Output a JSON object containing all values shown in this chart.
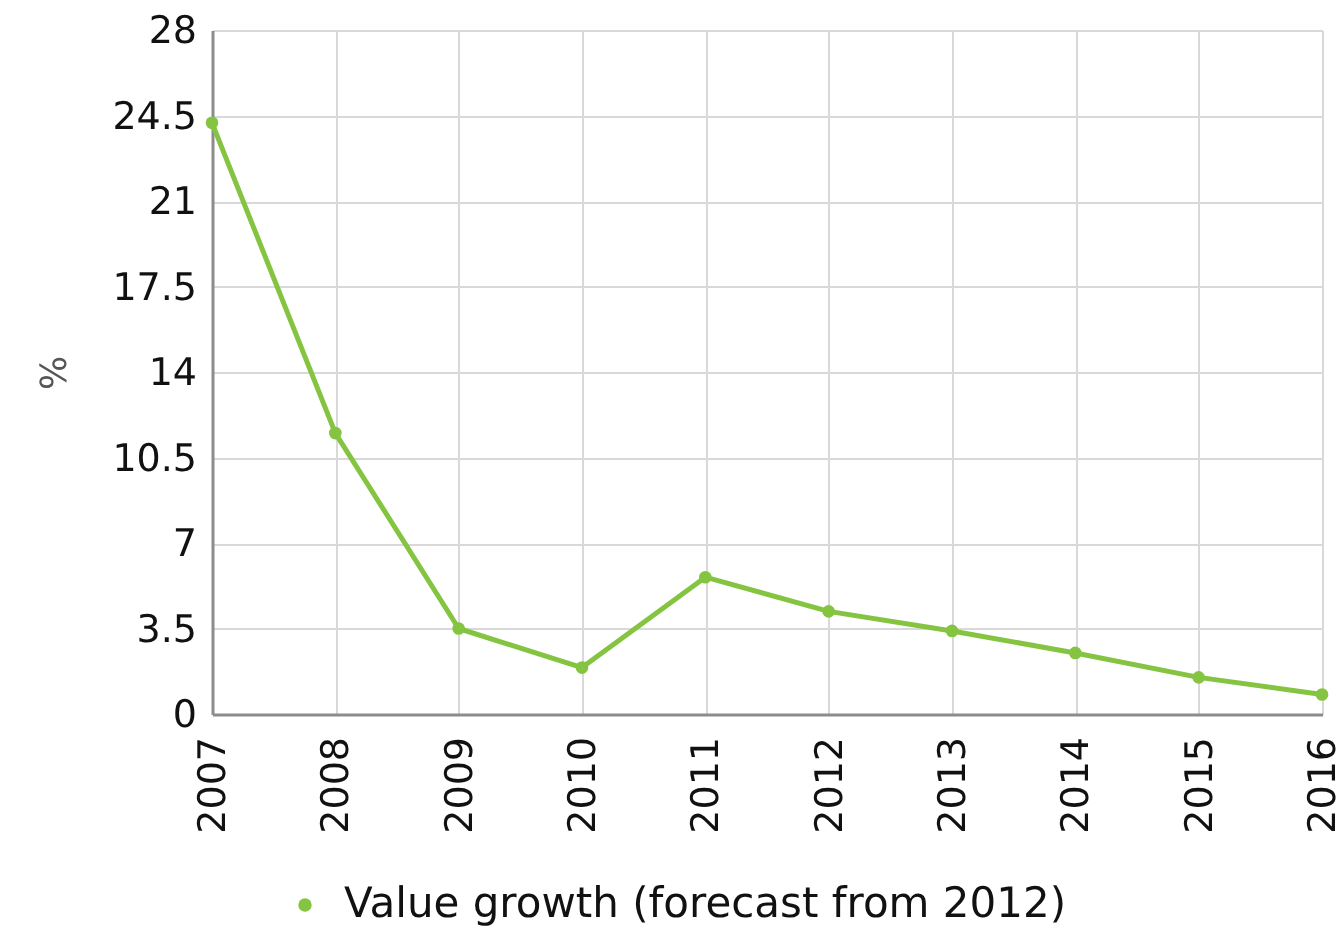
{
  "chart_data": {
    "type": "line",
    "ylabel": "%",
    "categories": [
      "2007",
      "2008",
      "2009",
      "2010",
      "2011",
      "2012",
      "2013",
      "2014",
      "2015",
      "2016"
    ],
    "series": [
      {
        "name": "Value growth (forecast from 2012)",
        "color": "#84c441",
        "values": [
          24.2,
          11.5,
          3.5,
          1.9,
          5.6,
          4.2,
          3.4,
          2.5,
          1.5,
          0.8
        ]
      }
    ],
    "ylim": [
      0,
      28
    ],
    "yticks": [
      0,
      3.5,
      7,
      10.5,
      14,
      17.5,
      21,
      24.5,
      28
    ],
    "grid": true,
    "legend": "bottom",
    "marker": "circle",
    "line_style": "solid"
  }
}
